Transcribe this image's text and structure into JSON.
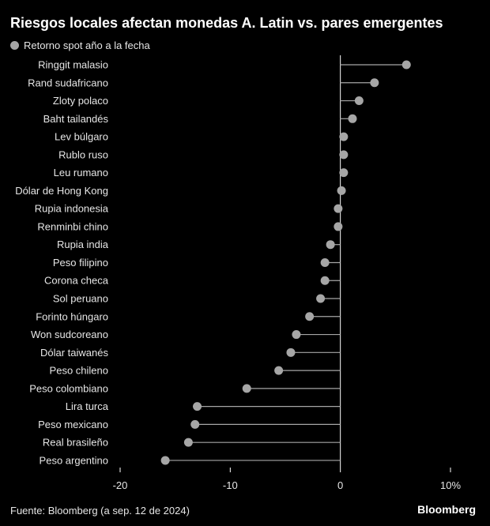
{
  "colors": {
    "background": "#000000",
    "marker": "#a6a6a6",
    "stem": "#a6a6a6",
    "text": "#ffffff",
    "axis": "#ffffff"
  },
  "chart_data": {
    "type": "lollipop",
    "title": "Riesgos locales afectan monedas A. Latin vs. pares emergentes",
    "legend_position": "top-left",
    "series": [
      {
        "name": "Retorno spot año a la fecha",
        "categories": [
          "Ringgit malasio",
          "Rand sudafricano",
          "Zloty polaco",
          "Baht tailandés",
          "Lev búlgaro",
          "Rublo ruso",
          "Leu rumano",
          "Dólar de Hong Kong",
          "Rupia indonesia",
          "Renminbi chino",
          "Rupia india",
          "Peso filipino",
          "Corona checa",
          "Sol peruano",
          "Forinto húngaro",
          "Won sudcoreano",
          "Dólar taiwanés",
          "Peso chileno",
          "Peso colombiano",
          "Lira turca",
          "Peso mexicano",
          "Real brasileño",
          "Peso argentino"
        ],
        "values": [
          6.0,
          3.1,
          1.7,
          1.1,
          0.3,
          0.3,
          0.3,
          0.1,
          -0.2,
          -0.2,
          -0.9,
          -1.4,
          -1.4,
          -1.8,
          -2.8,
          -4.0,
          -4.5,
          -5.6,
          -8.5,
          -13.0,
          -13.2,
          -13.8,
          -15.9
        ]
      }
    ],
    "xlim": [
      -20,
      10
    ],
    "xticks": [
      "-20",
      "-10",
      "0",
      "10%"
    ],
    "grid": false
  },
  "footer": {
    "source": "Fuente: Bloomberg (a sep. 12 de 2024)",
    "brand": "Bloomberg"
  }
}
